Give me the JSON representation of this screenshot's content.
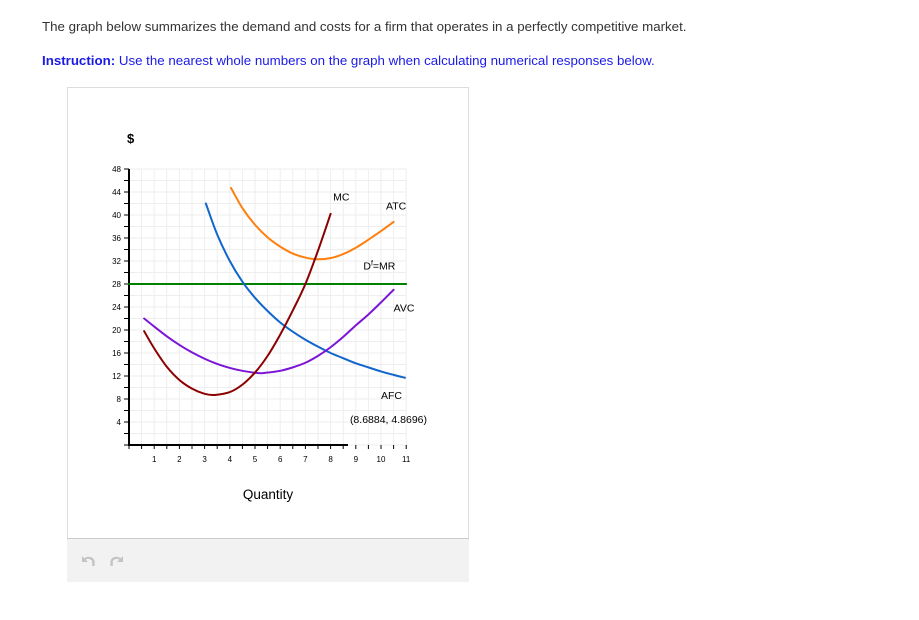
{
  "page": {
    "intro": "The graph below summarizes the demand and costs for a firm that operates in a perfectly competitive market.",
    "instruction_label": "Instruction:",
    "instruction_text": " Use the nearest whole numbers on the graph when calculating numerical responses below."
  },
  "toolbar": {
    "undo_icon": "undo-icon",
    "redo_icon": "redo-icon"
  },
  "colors": {
    "MC": "#8b0000",
    "ATC": "#ff7f0e",
    "AVC": "#7b16d6",
    "AFC": "#1166cc",
    "MR": "#008000",
    "grid": "#eeeeee",
    "axis": "#000000",
    "instruction": "#1a1ae6"
  },
  "chart_data": {
    "type": "line",
    "title": "",
    "xlabel": "Quantity",
    "ylabel": "$",
    "xlim": [
      0,
      11
    ],
    "ylim": [
      0,
      48
    ],
    "x_ticks": [
      1,
      2,
      3,
      4,
      5,
      6,
      7,
      8,
      9,
      10,
      11
    ],
    "y_ticks": [
      4,
      8,
      12,
      16,
      20,
      24,
      28,
      32,
      36,
      40,
      44,
      48
    ],
    "grid": true,
    "tooltip": {
      "text": "(8.6884, 4.8696)",
      "x": 8.6884,
      "y": 4.8696
    },
    "series": [
      {
        "name": "MC",
        "label": "MC",
        "color": "#8b0000",
        "x": [
          0.6,
          1.0,
          1.5,
          2.0,
          2.5,
          3.0,
          3.4,
          4.0,
          4.5,
          5.0,
          5.5,
          6.0,
          6.5,
          7.0,
          7.5,
          8.0
        ],
        "y": [
          19.8,
          16.8,
          13.6,
          11.3,
          9.8,
          8.9,
          8.7,
          9.2,
          10.5,
          12.6,
          15.5,
          19.2,
          23.4,
          28.0,
          33.8,
          40.2
        ],
        "label_pos": [
          8.1,
          42.5
        ]
      },
      {
        "name": "ATC",
        "label": "ATC",
        "color": "#ff7f0e",
        "x": [
          4.05,
          4.5,
          5.0,
          5.5,
          6.0,
          6.5,
          7.0,
          7.45,
          8.0,
          8.5,
          9.0,
          9.5,
          10.0,
          10.5
        ],
        "y": [
          44.7,
          41.2,
          38.3,
          36.1,
          34.5,
          33.3,
          32.6,
          32.3,
          32.5,
          33.2,
          34.3,
          35.7,
          37.2,
          38.8
        ],
        "label_pos": [
          10.2,
          41.0
        ]
      },
      {
        "name": "AVC",
        "label": "AVC",
        "color": "#7b16d6",
        "x": [
          0.6,
          1.0,
          1.5,
          2.0,
          2.5,
          3.0,
          3.5,
          4.0,
          4.5,
          5.15,
          5.5,
          6.0,
          6.5,
          7.0,
          7.5,
          8.0,
          8.5,
          9.0,
          9.5,
          10.0,
          10.5
        ],
        "y": [
          22.0,
          20.6,
          18.9,
          17.4,
          16.1,
          15.0,
          14.1,
          13.4,
          12.9,
          12.5,
          12.6,
          12.9,
          13.5,
          14.3,
          15.5,
          17.0,
          18.8,
          20.8,
          22.7,
          24.8,
          27.0
        ],
        "label_pos": [
          10.5,
          23.2
        ]
      },
      {
        "name": "AFC",
        "label": "AFC",
        "color": "#1166cc",
        "x": [
          3.05,
          3.5,
          4.0,
          4.5,
          5.0,
          5.5,
          6.0,
          6.5,
          7.0,
          7.5,
          8.0,
          8.5,
          9.0,
          9.5,
          10.0,
          10.5,
          10.95
        ],
        "y": [
          42.0,
          36.6,
          32.0,
          28.4,
          25.6,
          23.3,
          21.3,
          19.7,
          18.3,
          17.1,
          16.0,
          15.1,
          14.2,
          13.5,
          12.8,
          12.2,
          11.7
        ],
        "label_pos": [
          10.0,
          8.0
        ]
      },
      {
        "name": "Df=MR",
        "label": "D",
        "label_sup": "f",
        "label_rest": "=MR",
        "color": "#008000",
        "x": [
          0,
          11
        ],
        "y": [
          28,
          28
        ],
        "label_pos": [
          9.3,
          30.5
        ]
      }
    ]
  }
}
